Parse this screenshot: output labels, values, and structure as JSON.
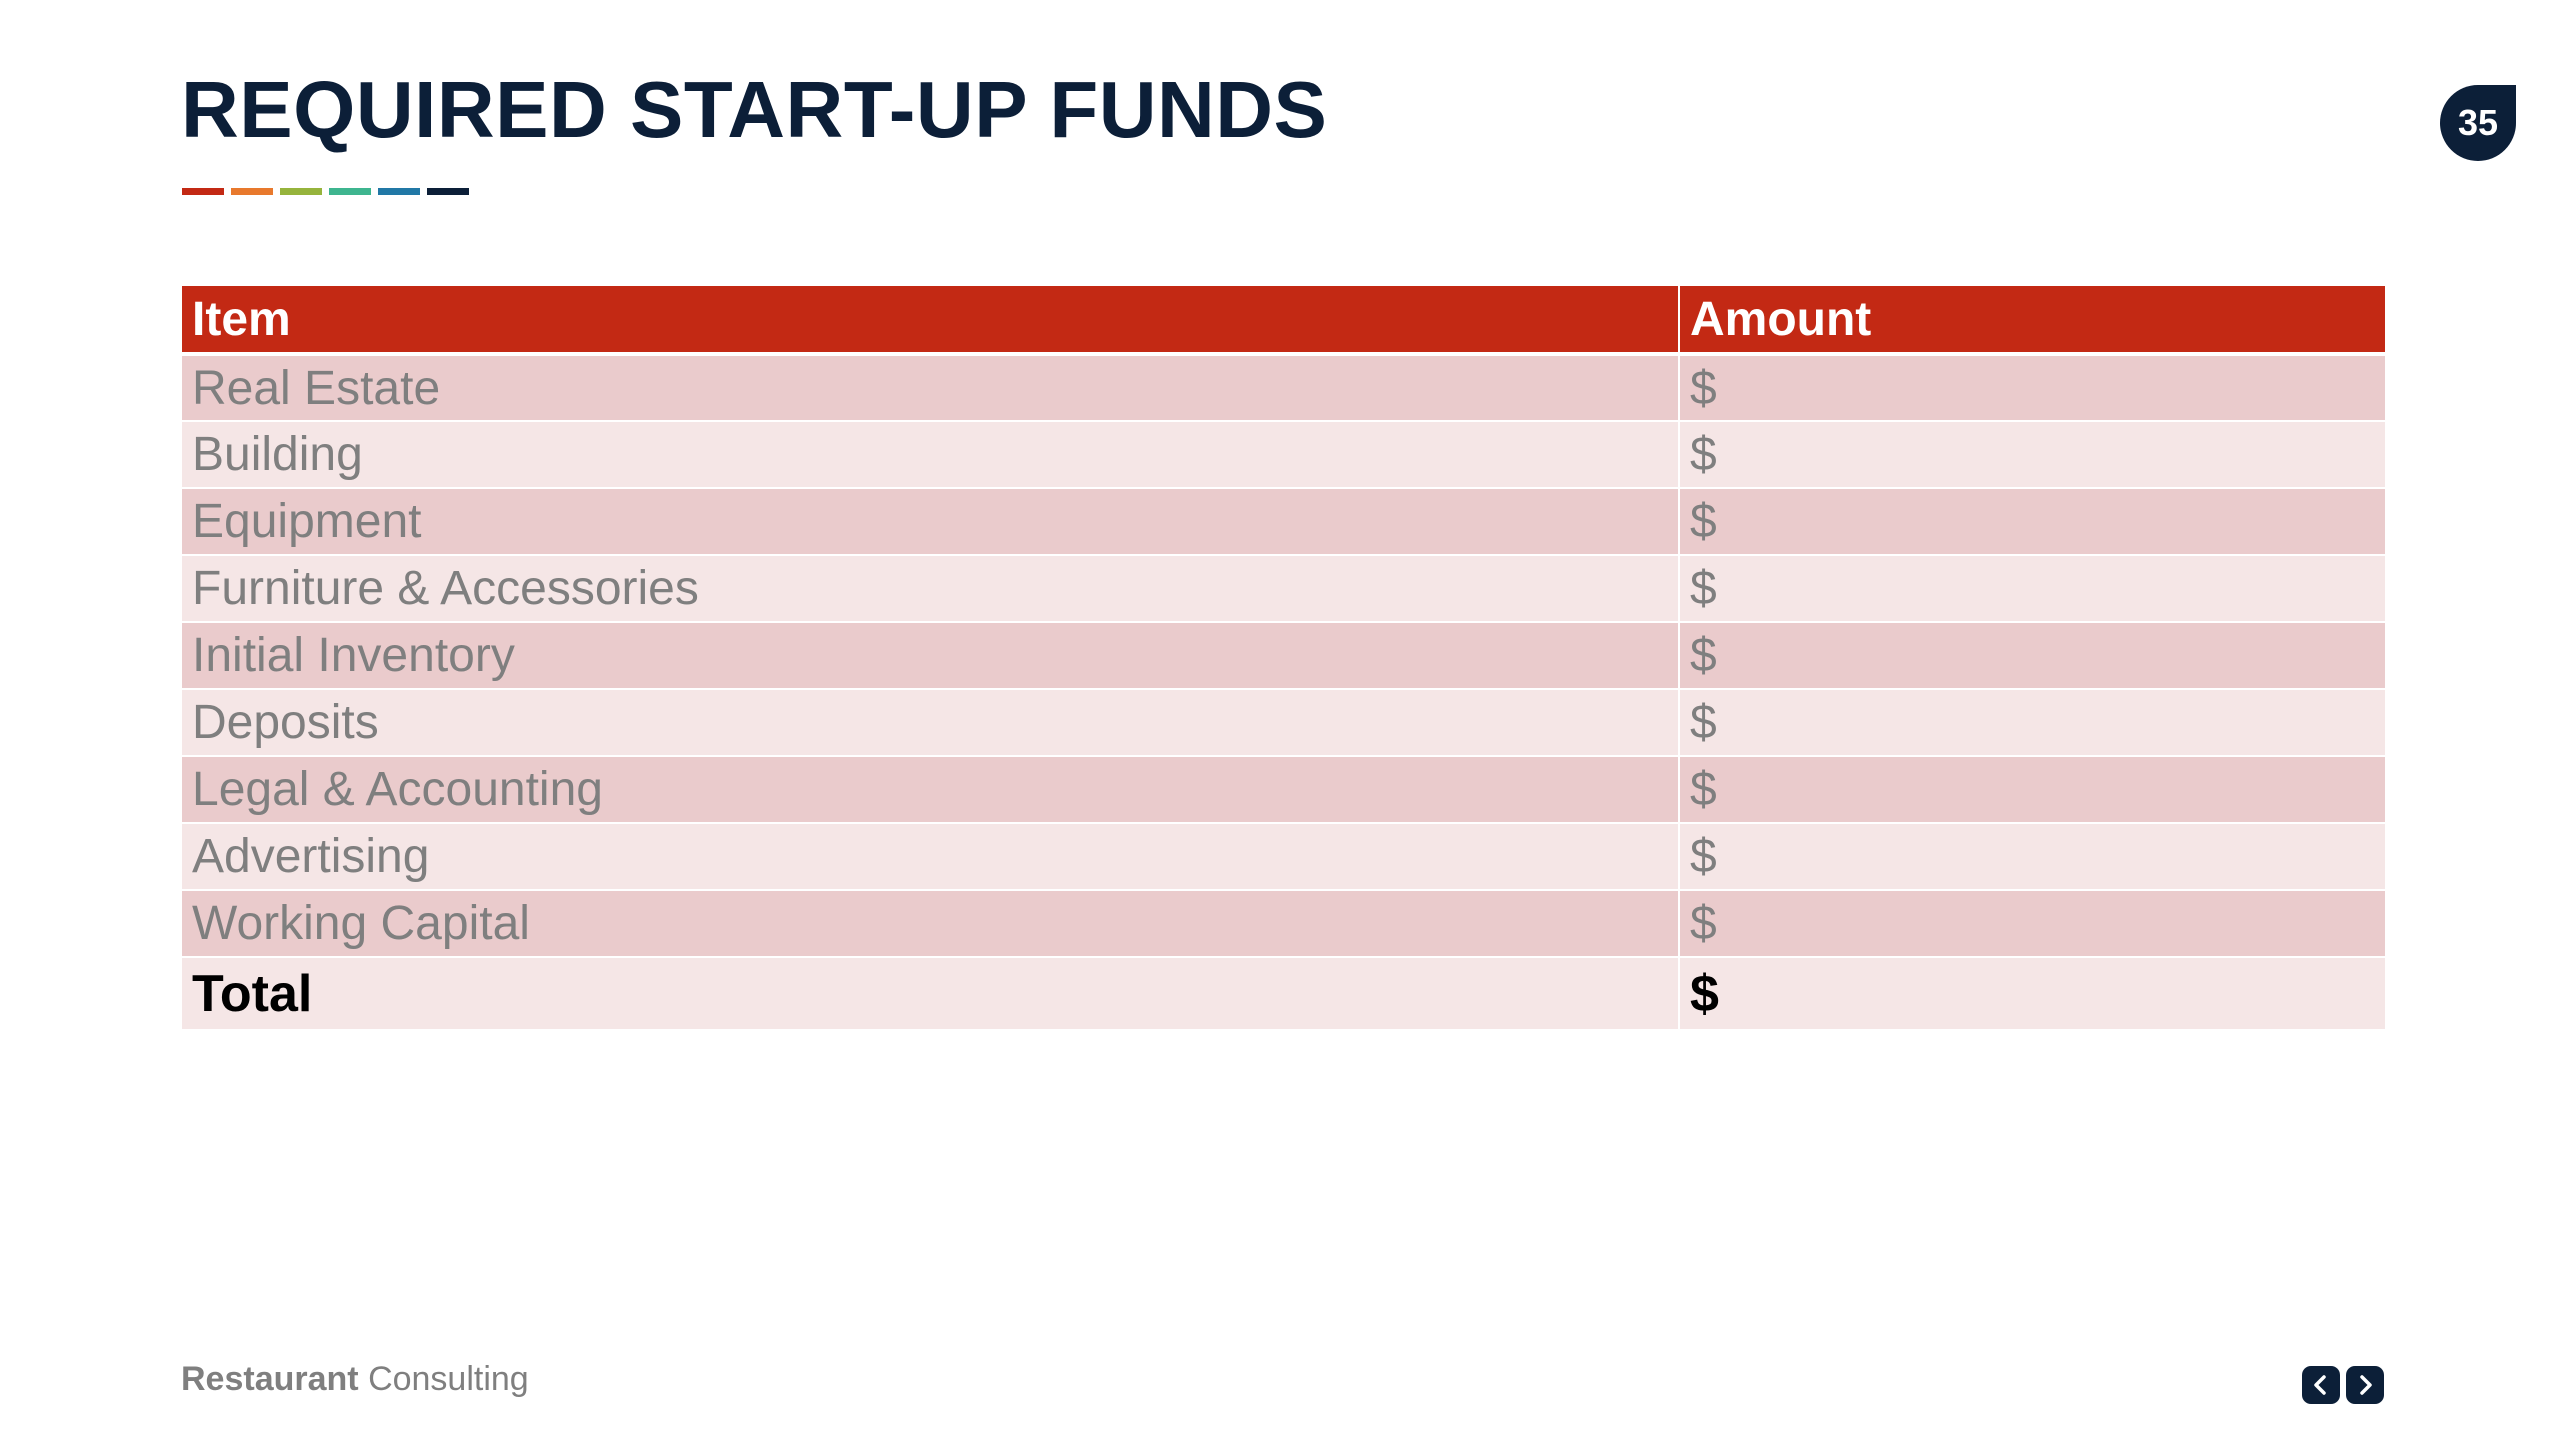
{
  "slide": {
    "title": "REQUIRED START-UP FUNDS",
    "page_number": "35",
    "accent_colors": [
      "#c32914",
      "#e8792d",
      "#96b43c",
      "#3eb58f",
      "#2178a6",
      "#0c1f38"
    ]
  },
  "table": {
    "headers": {
      "item": "Item",
      "amount": "Amount"
    },
    "rows": [
      {
        "item": "Real Estate",
        "amount": "$"
      },
      {
        "item": "Building",
        "amount": "$"
      },
      {
        "item": "Equipment",
        "amount": "$"
      },
      {
        "item": "Furniture & Accessories",
        "amount": "$"
      },
      {
        "item": "Initial Inventory",
        "amount": "$"
      },
      {
        "item": "Deposits",
        "amount": "$"
      },
      {
        "item": "Legal & Accounting",
        "amount": "$"
      },
      {
        "item": "Advertising",
        "amount": "$"
      },
      {
        "item": "Working Capital",
        "amount": "$"
      }
    ],
    "total": {
      "item": "Total",
      "amount": "$"
    },
    "colors": {
      "header_bg": "#c32914",
      "row_dark": "#eacbcc",
      "row_light": "#f5e6e6"
    }
  },
  "footer": {
    "brand_bold": "Restaurant",
    "brand_regular": "Consulting",
    "prev_icon": "chevron-left-icon",
    "next_icon": "chevron-right-icon"
  }
}
